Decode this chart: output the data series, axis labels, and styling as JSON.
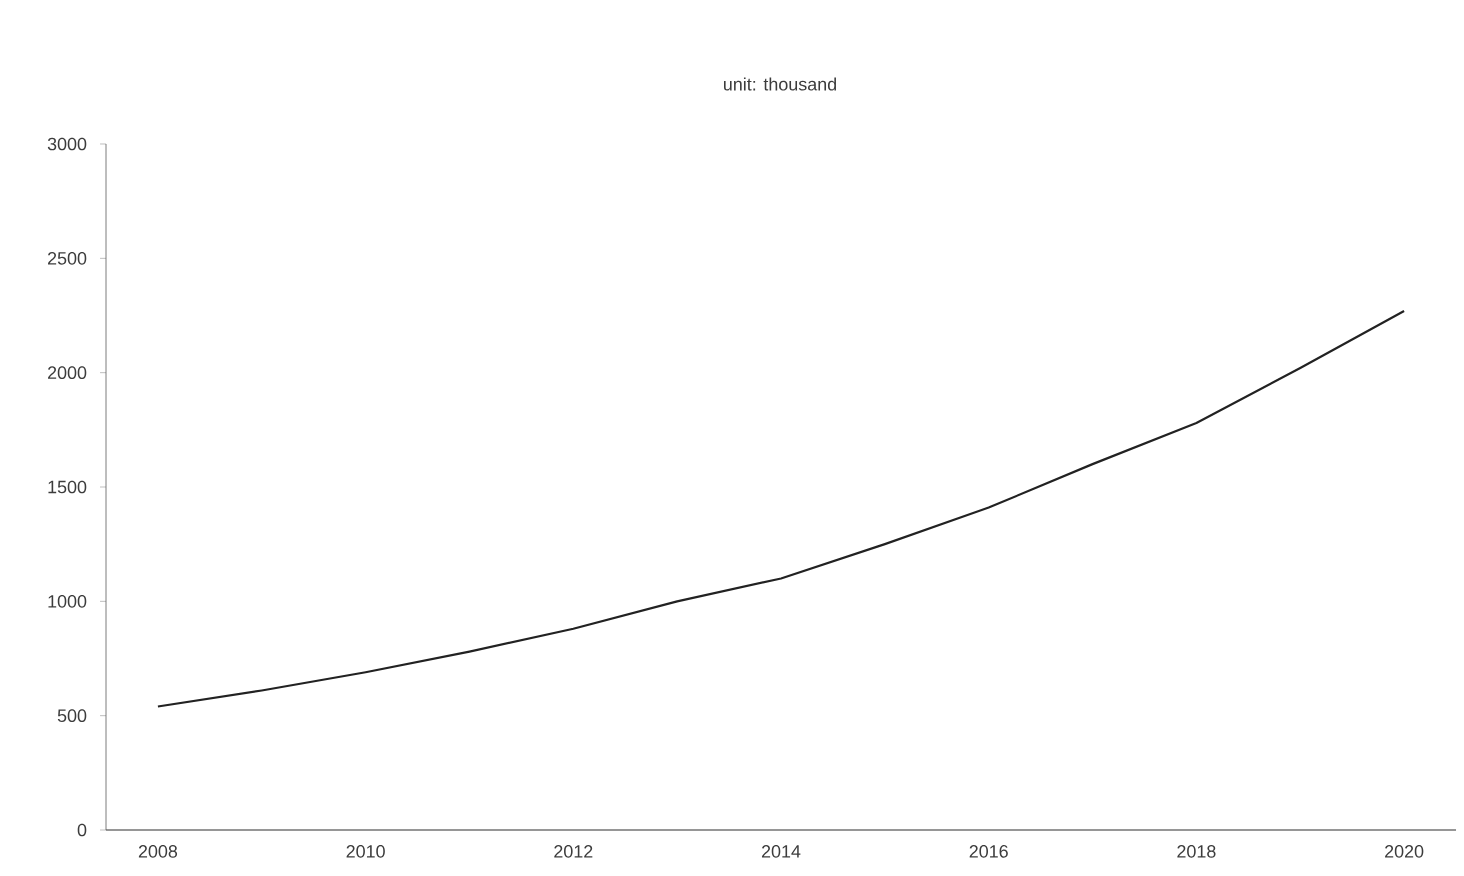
{
  "chart_data": {
    "type": "line",
    "title": "unit: thousand",
    "x": [
      2008,
      2009,
      2010,
      2011,
      2012,
      2013,
      2014,
      2015,
      2016,
      2017,
      2018,
      2019,
      2020
    ],
    "series": [
      {
        "color": "#222222",
        "values": [
          540,
          610,
          690,
          780,
          880,
          1000,
          1100,
          1250,
          1410,
          1600,
          1780,
          2020,
          2270
        ]
      }
    ],
    "xlim": [
      2007.5,
      2020.5
    ],
    "xticks": [
      2008,
      2010,
      2012,
      2014,
      2016,
      2018,
      2020
    ],
    "ylim": [
      0,
      3000
    ],
    "yticks": [
      0,
      500,
      1000,
      1500,
      2000,
      2500,
      3000
    ],
    "marker": "none",
    "line_style": "solid"
  }
}
